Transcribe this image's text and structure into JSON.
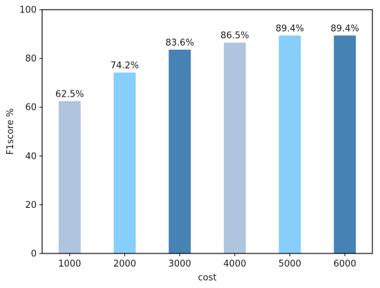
{
  "chart_data": {
    "type": "bar",
    "title": "",
    "xlabel": "cost",
    "ylabel": "F1score %",
    "categories": [
      "1000",
      "2000",
      "3000",
      "4000",
      "5000",
      "6000"
    ],
    "values": [
      62.5,
      74.2,
      83.6,
      86.5,
      89.4,
      89.4
    ],
    "data_labels": [
      "62.5%",
      "74.2%",
      "83.6%",
      "86.5%",
      "89.4%",
      "89.4%"
    ],
    "ylim": [
      0,
      100
    ],
    "yticks": [
      0,
      20,
      40,
      60,
      80,
      100
    ],
    "grid": false,
    "legend": "none",
    "bar_colors": [
      "#b0c4de",
      "#87cefa",
      "#4682b4",
      "#b0c4de",
      "#87cefa",
      "#4682b4"
    ]
  }
}
